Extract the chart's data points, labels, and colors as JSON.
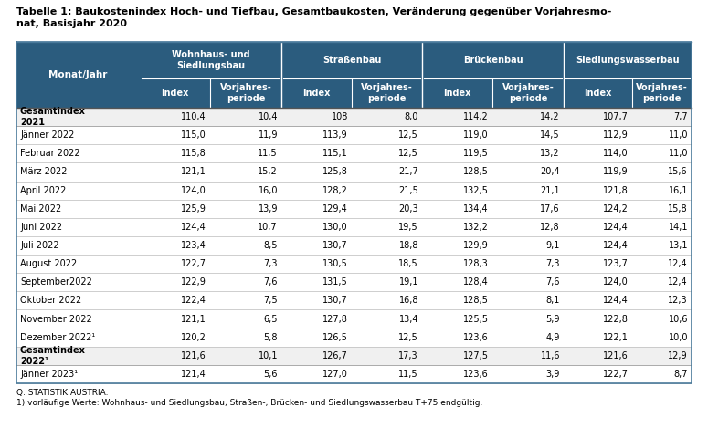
{
  "title_line1": "Tabelle 1: Baukostenindex Hoch- und Tiefbau, Gesamtbaukosten, Veränderung gegenüber Vorjahresmo-",
  "title_line2": "nat, Basisjahr 2020",
  "header_bg": "#2b5c7e",
  "header_text": "#ffffff",
  "col_groups": [
    "Wohnhaus- und\nSiedlungsbau",
    "Straßenbau",
    "Brückenbau",
    "Siedlungswasserbau"
  ],
  "rows": [
    {
      "label": "Gesamtindex\n2021",
      "bold_label": true,
      "values": [
        "110,4",
        "10,4",
        "108",
        "8,0",
        "114,2",
        "14,2",
        "107,7",
        "7,7"
      ]
    },
    {
      "label": "Jänner 2022",
      "bold_label": false,
      "values": [
        "115,0",
        "11,9",
        "113,9",
        "12,5",
        "119,0",
        "14,5",
        "112,9",
        "11,0"
      ]
    },
    {
      "label": "Februar 2022",
      "bold_label": false,
      "values": [
        "115,8",
        "11,5",
        "115,1",
        "12,5",
        "119,5",
        "13,2",
        "114,0",
        "11,0"
      ]
    },
    {
      "label": "März 2022",
      "bold_label": false,
      "values": [
        "121,1",
        "15,2",
        "125,8",
        "21,7",
        "128,5",
        "20,4",
        "119,9",
        "15,6"
      ]
    },
    {
      "label": "April 2022",
      "bold_label": false,
      "values": [
        "124,0",
        "16,0",
        "128,2",
        "21,5",
        "132,5",
        "21,1",
        "121,8",
        "16,1"
      ]
    },
    {
      "label": "Mai 2022",
      "bold_label": false,
      "values": [
        "125,9",
        "13,9",
        "129,4",
        "20,3",
        "134,4",
        "17,6",
        "124,2",
        "15,8"
      ]
    },
    {
      "label": "Juni 2022",
      "bold_label": false,
      "values": [
        "124,4",
        "10,7",
        "130,0",
        "19,5",
        "132,2",
        "12,8",
        "124,4",
        "14,1"
      ]
    },
    {
      "label": "Juli 2022",
      "bold_label": false,
      "values": [
        "123,4",
        "8,5",
        "130,7",
        "18,8",
        "129,9",
        "9,1",
        "124,4",
        "13,1"
      ]
    },
    {
      "label": "August 2022",
      "bold_label": false,
      "values": [
        "122,7",
        "7,3",
        "130,5",
        "18,5",
        "128,3",
        "7,3",
        "123,7",
        "12,4"
      ]
    },
    {
      "label": "September2022",
      "bold_label": false,
      "values": [
        "122,9",
        "7,6",
        "131,5",
        "19,1",
        "128,4",
        "7,6",
        "124,0",
        "12,4"
      ]
    },
    {
      "label": "Oktober 2022",
      "bold_label": false,
      "values": [
        "122,4",
        "7,5",
        "130,7",
        "16,8",
        "128,5",
        "8,1",
        "124,4",
        "12,3"
      ]
    },
    {
      "label": "November 2022",
      "bold_label": false,
      "values": [
        "121,1",
        "6,5",
        "127,8",
        "13,4",
        "125,5",
        "5,9",
        "122,8",
        "10,6"
      ]
    },
    {
      "label": "Dezember 2022¹",
      "bold_label": false,
      "values": [
        "120,2",
        "5,8",
        "126,5",
        "12,5",
        "123,6",
        "4,9",
        "122,1",
        "10,0"
      ]
    },
    {
      "label": "Gesamtindex\n2022¹",
      "bold_label": true,
      "values": [
        "121,6",
        "10,1",
        "126,7",
        "17,3",
        "127,5",
        "11,6",
        "121,6",
        "12,9"
      ]
    },
    {
      "label": "Jänner 2023¹",
      "bold_label": false,
      "values": [
        "121,4",
        "5,6",
        "127,0",
        "11,5",
        "123,6",
        "3,9",
        "122,7",
        "8,7"
      ]
    }
  ],
  "footer_line1": "Q: STATISTIK AUSTRIA.",
  "footer_line2": "1) vorläufige Werte: Wohnhaus- und Siedlungsbau, Straßen-, Brücken- und Siedlungswasserbau T+75 endgültig."
}
